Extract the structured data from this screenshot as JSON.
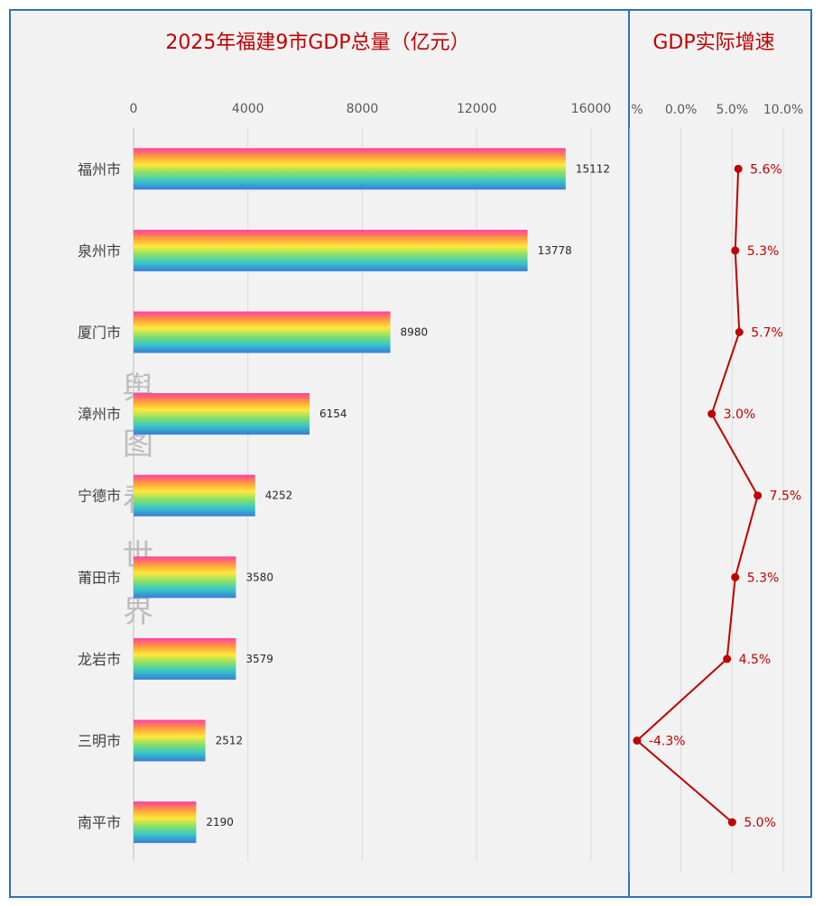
{
  "chart_data": [
    {
      "type": "bar",
      "orientation": "horizontal",
      "title": "2025年福建9市GDP总量（亿元）",
      "categories": [
        "福州市",
        "泉州市",
        "厦门市",
        "漳州市",
        "宁德市",
        "莆田市",
        "龙岩市",
        "三明市",
        "南平市"
      ],
      "values": [
        15112,
        13778,
        8980,
        6154,
        4252,
        3580,
        3579,
        2512,
        2190
      ],
      "value_labels": [
        "15112",
        "13778",
        "8980",
        "6154",
        "4252",
        "3580",
        "3579",
        "2512",
        "2190"
      ],
      "xlim": [
        0,
        16000
      ],
      "xticks": [
        "0",
        "4000",
        "8000",
        "12000",
        "16000"
      ],
      "axis_position": "top",
      "bar_fill": "rainbow gradient",
      "grid": true
    },
    {
      "type": "line",
      "title": "GDP实际增速",
      "categories": [
        "福州市",
        "泉州市",
        "厦门市",
        "漳州市",
        "宁德市",
        "莆田市",
        "龙岩市",
        "三明市",
        "南平市"
      ],
      "values": [
        5.6,
        5.3,
        5.7,
        3.0,
        7.5,
        5.3,
        4.5,
        -4.3,
        5.0
      ],
      "value_labels": [
        "5.6%",
        "5.3%",
        "5.7%",
        "3.0%",
        "7.5%",
        "5.3%",
        "4.5%",
        "-4.3%",
        "5.0%"
      ],
      "xlim": [
        -5,
        10
      ],
      "xticks": [
        "%",
        "0.0%",
        "5.0%",
        "10.0%"
      ],
      "axis_position": "top",
      "color": "#c00000",
      "grid": true
    }
  ],
  "watermark": [
    "舆",
    "图",
    "看",
    "世",
    "界"
  ],
  "colors": {
    "frame": "#2e74b5",
    "title": "#c00000",
    "line": "#c00000",
    "background": "#f2f2f2",
    "rainbow": [
      "#ff3fa4",
      "#ff9a3c",
      "#ffe93a",
      "#86e06a",
      "#36c6c9",
      "#3a7bd5"
    ]
  }
}
